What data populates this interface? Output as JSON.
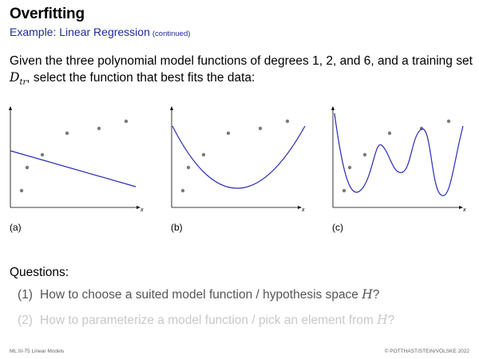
{
  "title": "Overfitting",
  "subtitle": "Example: Linear Regression",
  "subtitle_note": "(continued)",
  "intro": {
    "text_before": "Given the three polynomial model functions of degrees 1, 2, and 6, and a training set ",
    "math_symbol": "D",
    "math_sub": "tr",
    "text_after": ", select the function that best fits the data:"
  },
  "plots": [
    {
      "label": "(a)",
      "axis_label": "x",
      "curve": "degree-1"
    },
    {
      "label": "(b)",
      "axis_label": "x",
      "curve": "degree-2"
    },
    {
      "label": "(c)",
      "axis_label": "x",
      "curve": "degree-6"
    }
  ],
  "colors": {
    "curve": "#2b2bb8",
    "point": "#7a7a7a",
    "subtitle": "#1f2a9c"
  },
  "questions": {
    "heading": "Questions:",
    "items": [
      {
        "num": "(1)",
        "text": "How to choose a suited model function / hypothesis space ",
        "symbol": "H",
        "end": "?"
      },
      {
        "num": "(2)",
        "text": "How to parameterize a model function / pick an element from ",
        "symbol": "H",
        "end": "?"
      }
    ]
  },
  "footer": {
    "left": "ML:III-75   Linear Models",
    "right": "© POTTHAST/STEIN/VÖLSKE 2022"
  }
}
